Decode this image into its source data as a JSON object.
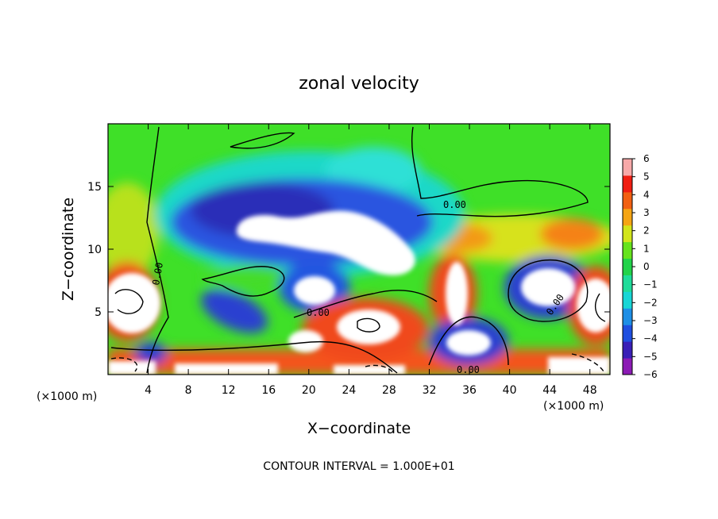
{
  "chart_data": {
    "type": "heatmap",
    "title": "zonal velocity",
    "xlabel": "X−coordinate",
    "ylabel": "Z−coordinate",
    "x_unit": "(×1000 m)",
    "y_unit": "(×1000 m)",
    "xlim": [
      0,
      50
    ],
    "ylim": [
      0,
      20
    ],
    "x_ticks": [
      4,
      8,
      12,
      16,
      20,
      24,
      28,
      32,
      36,
      40,
      44,
      48
    ],
    "y_ticks": [
      5,
      10,
      15
    ],
    "colorbar": {
      "min": -6,
      "max": 6,
      "ticks": [
        6,
        5,
        4,
        3,
        2,
        1,
        0,
        -1,
        -2,
        -3,
        -4,
        -5,
        -6
      ],
      "colors": [
        "#8c1bb5",
        "#3a1fb7",
        "#1f4fe0",
        "#1e8fe6",
        "#18d6d6",
        "#1fdc9a",
        "#22d34a",
        "#66e31d",
        "#d2e51b",
        "#f5a514",
        "#f26012",
        "#f01e12",
        "#f7a9a9"
      ]
    },
    "contour_interval": "CONTOUR INTERVAL = 1.000E+01",
    "contour_labels": [
      "0.00",
      "0.00",
      "0.00",
      "0.00",
      "0.00"
    ]
  },
  "colors": {
    "background": "#ffffff",
    "frame": "#000000"
  }
}
